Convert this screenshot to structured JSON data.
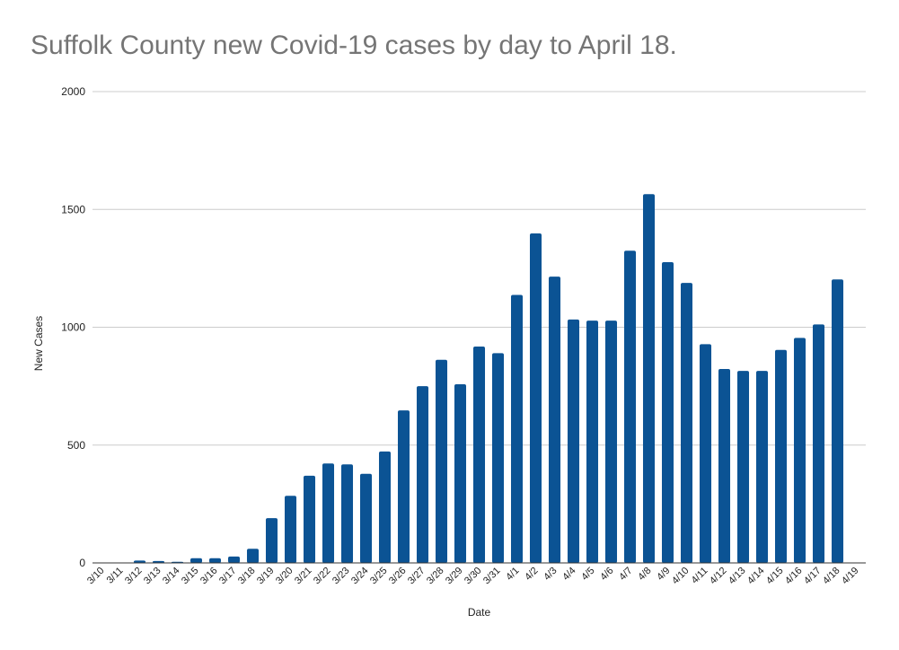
{
  "chart_data": {
    "type": "bar",
    "title": "Suffolk County new Covid-19 cases by day to April 18.",
    "xlabel": "Date",
    "ylabel": "New Cases",
    "ylim": [
      0,
      2000
    ],
    "yticks": [
      0,
      500,
      1000,
      1500,
      2000
    ],
    "grid": true,
    "legend": "none",
    "bar_color": "#0b5394",
    "categories": [
      "3/10",
      "3/11",
      "3/12",
      "3/13",
      "3/14",
      "3/15",
      "3/16",
      "3/17",
      "3/18",
      "3/19",
      "3/20",
      "3/21",
      "3/22",
      "3/23",
      "3/24",
      "3/25",
      "3/26",
      "3/27",
      "3/28",
      "3/29",
      "3/30",
      "3/31",
      "4/1",
      "4/2",
      "4/3",
      "4/4",
      "4/5",
      "4/6",
      "4/7",
      "4/8",
      "4/9",
      "4/10",
      "4/11",
      "4/12",
      "4/13",
      "4/14",
      "4/15",
      "4/16",
      "4/17",
      "4/18",
      "4/19"
    ],
    "values": [
      0,
      1,
      10,
      8,
      5,
      20,
      20,
      27,
      60,
      190,
      285,
      370,
      422,
      418,
      378,
      473,
      647,
      750,
      862,
      758,
      918,
      890,
      1137,
      1398,
      1215,
      1033,
      1028,
      1028,
      1325,
      1565,
      1276,
      1188,
      928,
      823,
      815,
      815,
      904,
      955,
      1012,
      1203,
      null
    ]
  }
}
